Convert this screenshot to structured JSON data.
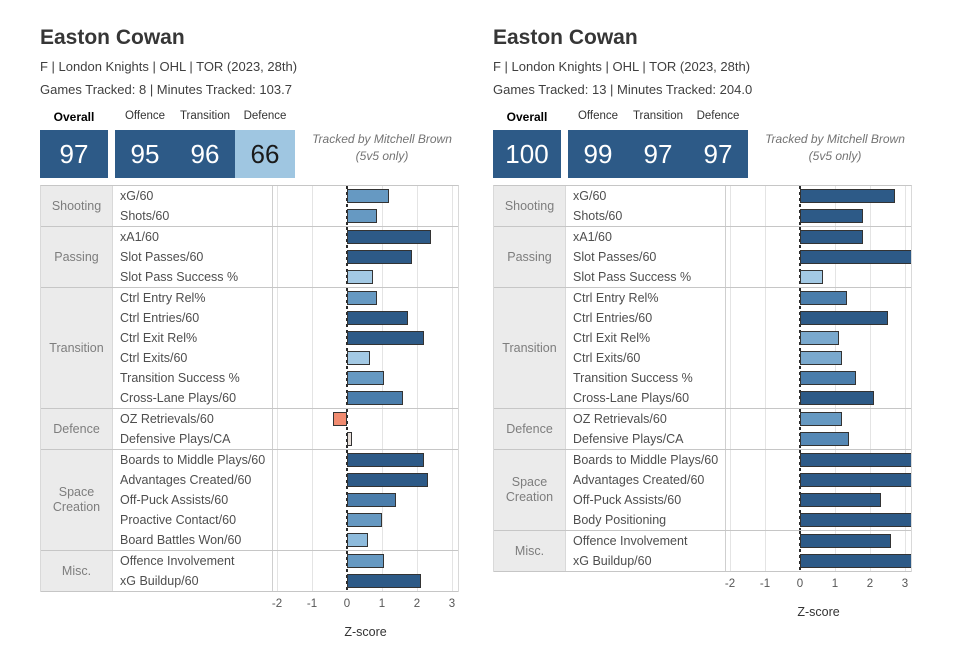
{
  "colors": {
    "score_dark_blue": "#2d5a87",
    "score_light_blue": "#9fc6e1",
    "bar_dark_blue": "#2d5a87",
    "bar_medium_blue": "#4a7dab",
    "bar_steel_blue": "#6699c2",
    "bar_light_blue": "#a3c9e4",
    "bar_negative_salmon": "#f08b70",
    "bar_neutral_pale": "#e8e0db"
  },
  "chart_data": [
    {
      "type": "bar",
      "orientation": "horizontal",
      "title": "Easton Cowan",
      "subtitle": "F | London Knights | OHL | TOR (2023, 28th)",
      "tracking_line": "Games Tracked: 8 | Minutes Tracked: 103.7",
      "credit_line1": "Tracked by Mitchell Brown",
      "credit_line2": "(5v5 only)",
      "xlabel": "Z-score",
      "x_ticks": [
        -2,
        -1,
        0,
        1,
        2,
        3
      ],
      "xlim": [
        -2.1,
        3.2
      ],
      "grid": true,
      "scores": {
        "overall": {
          "label": "Overall",
          "value": "97",
          "style": "dark"
        },
        "sub": [
          {
            "label": "Offence",
            "value": "95",
            "style": "dark"
          },
          {
            "label": "Transition",
            "value": "96",
            "style": "dark"
          },
          {
            "label": "Defence",
            "value": "66",
            "style": "light"
          }
        ]
      },
      "groups": [
        {
          "name": "Shooting",
          "rows": [
            {
              "label": "xG/60",
              "value": 1.2,
              "color": "#6699c2"
            },
            {
              "label": "Shots/60",
              "value": 0.85,
              "color": "#6699c2"
            }
          ]
        },
        {
          "name": "Passing",
          "rows": [
            {
              "label": "xA1/60",
              "value": 2.4,
              "color": "#2d5a87"
            },
            {
              "label": "Slot Passes/60",
              "value": 1.85,
              "color": "#2d5a87"
            },
            {
              "label": "Slot Pass Success %",
              "value": 0.75,
              "color": "#a3c9e4"
            }
          ]
        },
        {
          "name": "Transition",
          "rows": [
            {
              "label": "Ctrl Entry Rel%",
              "value": 0.85,
              "color": "#6699c2"
            },
            {
              "label": "Ctrl Entries/60",
              "value": 1.75,
              "color": "#2d5a87"
            },
            {
              "label": "Ctrl Exit Rel%",
              "value": 2.2,
              "color": "#2d5a87"
            },
            {
              "label": "Ctrl Exits/60",
              "value": 0.65,
              "color": "#a3c9e4"
            },
            {
              "label": "Transition Success %",
              "value": 1.05,
              "color": "#6699c2"
            },
            {
              "label": "Cross-Lane Plays/60",
              "value": 1.6,
              "color": "#4a7dab"
            }
          ]
        },
        {
          "name": "Defence",
          "rows": [
            {
              "label": "OZ Retrievals/60",
              "value": -0.4,
              "color": "#f08b70"
            },
            {
              "label": "Defensive Plays/CA",
              "value": 0.15,
              "color": "#e8e0db"
            }
          ]
        },
        {
          "name": "Space Creation",
          "rows": [
            {
              "label": "Boards to Middle Plays/60",
              "value": 2.2,
              "color": "#2d5a87"
            },
            {
              "label": "Advantages Created/60",
              "value": 2.3,
              "color": "#2d5a87"
            },
            {
              "label": "Off-Puck Assists/60",
              "value": 1.4,
              "color": "#4a7dab"
            },
            {
              "label": "Proactive Contact/60",
              "value": 1.0,
              "color": "#6699c2"
            },
            {
              "label": "Board Battles Won/60",
              "value": 0.6,
              "color": "#8ebbdc"
            }
          ]
        },
        {
          "name": "Misc.",
          "rows": [
            {
              "label": "Offence Involvement",
              "value": 1.05,
              "color": "#6699c2"
            },
            {
              "label": "xG Buildup/60",
              "value": 2.1,
              "color": "#2d5a87"
            }
          ]
        }
      ]
    },
    {
      "type": "bar",
      "orientation": "horizontal",
      "title": "Easton Cowan",
      "subtitle": "F | London Knights | OHL | TOR (2023, 28th)",
      "tracking_line": "Games Tracked: 13 | Minutes Tracked: 204.0",
      "credit_line1": "Tracked by Mitchell Brown",
      "credit_line2": "(5v5 only)",
      "xlabel": "Z-score",
      "x_ticks": [
        -2,
        -1,
        0,
        1,
        2,
        3
      ],
      "xlim": [
        -2.1,
        3.2
      ],
      "grid": true,
      "scores": {
        "overall": {
          "label": "Overall",
          "value": "100",
          "style": "dark"
        },
        "sub": [
          {
            "label": "Offence",
            "value": "99",
            "style": "dark"
          },
          {
            "label": "Transition",
            "value": "97",
            "style": "dark"
          },
          {
            "label": "Defence",
            "value": "97",
            "style": "dark"
          }
        ]
      },
      "groups": [
        {
          "name": "Shooting",
          "rows": [
            {
              "label": "xG/60",
              "value": 2.7,
              "color": "#2d5a87"
            },
            {
              "label": "Shots/60",
              "value": 1.8,
              "color": "#2d5a87"
            }
          ]
        },
        {
          "name": "Passing",
          "rows": [
            {
              "label": "xA1/60",
              "value": 1.8,
              "color": "#2d5a87"
            },
            {
              "label": "Slot Passes/60",
              "value": 3.2,
              "color": "#2d5a87"
            },
            {
              "label": "Slot Pass Success %",
              "value": 0.65,
              "color": "#a3c9e4"
            }
          ]
        },
        {
          "name": "Transition",
          "rows": [
            {
              "label": "Ctrl Entry Rel%",
              "value": 1.35,
              "color": "#4a7dab"
            },
            {
              "label": "Ctrl Entries/60",
              "value": 2.5,
              "color": "#2d5a87"
            },
            {
              "label": "Ctrl Exit Rel%",
              "value": 1.1,
              "color": "#7aa9ce"
            },
            {
              "label": "Ctrl Exits/60",
              "value": 1.2,
              "color": "#7aa9ce"
            },
            {
              "label": "Transition Success %",
              "value": 1.6,
              "color": "#4a7dab"
            },
            {
              "label": "Cross-Lane Plays/60",
              "value": 2.1,
              "color": "#2d5a87"
            }
          ]
        },
        {
          "name": "Defence",
          "rows": [
            {
              "label": "OZ Retrievals/60",
              "value": 1.2,
              "color": "#6699c2"
            },
            {
              "label": "Defensive Plays/CA",
              "value": 1.4,
              "color": "#5588b5"
            }
          ]
        },
        {
          "name": "Space Creation",
          "rows": [
            {
              "label": "Boards to Middle Plays/60",
              "value": 3.2,
              "color": "#2d5a87"
            },
            {
              "label": "Advantages Created/60",
              "value": 3.2,
              "color": "#2d5a87"
            },
            {
              "label": "Off-Puck Assists/60",
              "value": 2.3,
              "color": "#2d5a87"
            },
            {
              "label": "Body Positioning",
              "value": 3.2,
              "color": "#2d5a87"
            }
          ]
        },
        {
          "name": "Misc.",
          "rows": [
            {
              "label": "Offence Involvement",
              "value": 2.6,
              "color": "#2d5a87"
            },
            {
              "label": "xG Buildup/60",
              "value": 3.2,
              "color": "#2d5a87"
            }
          ]
        }
      ]
    }
  ]
}
